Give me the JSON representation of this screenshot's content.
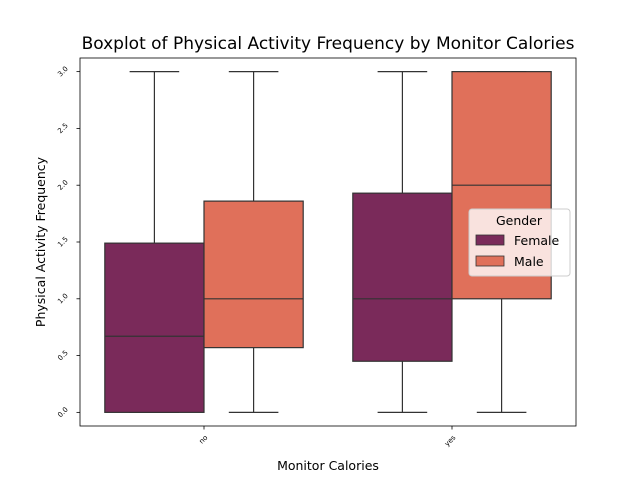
{
  "chart_data": {
    "type": "boxplot",
    "title": "Boxplot of Physical Activity Frequency by Monitor Calories",
    "xlabel": "Monitor Calories",
    "ylabel": "Physical Activity Frequency",
    "categories": [
      "no",
      "yes"
    ],
    "ylim": [
      -0.12,
      3.12
    ],
    "yticks": [
      0.0,
      0.5,
      1.0,
      1.5,
      2.0,
      2.5,
      3.0
    ],
    "ytick_labels": [
      "0.0",
      "0.5",
      "1.0",
      "1.5",
      "2.0",
      "2.5",
      "3.0"
    ],
    "grid": false,
    "legend": {
      "title": "Gender",
      "placement": "center-right",
      "entries": [
        "Female",
        "Male"
      ]
    },
    "series": [
      {
        "name": "Female",
        "color": "#7a2a5a",
        "boxes": [
          {
            "category": "no",
            "whisker_low": 0.0,
            "q1": 0.0,
            "median": 0.67,
            "q3": 1.49,
            "whisker_high": 3.0
          },
          {
            "category": "yes",
            "whisker_low": 0.0,
            "q1": 0.45,
            "median": 1.0,
            "q3": 1.93,
            "whisker_high": 3.0
          }
        ]
      },
      {
        "name": "Male",
        "color": "#e0705a",
        "boxes": [
          {
            "category": "no",
            "whisker_low": 0.0,
            "q1": 0.57,
            "median": 1.0,
            "q3": 1.86,
            "whisker_high": 3.0
          },
          {
            "category": "yes",
            "whisker_low": 0.0,
            "q1": 1.0,
            "median": 2.0,
            "q3": 3.0,
            "whisker_high": 3.0
          }
        ]
      }
    ]
  }
}
